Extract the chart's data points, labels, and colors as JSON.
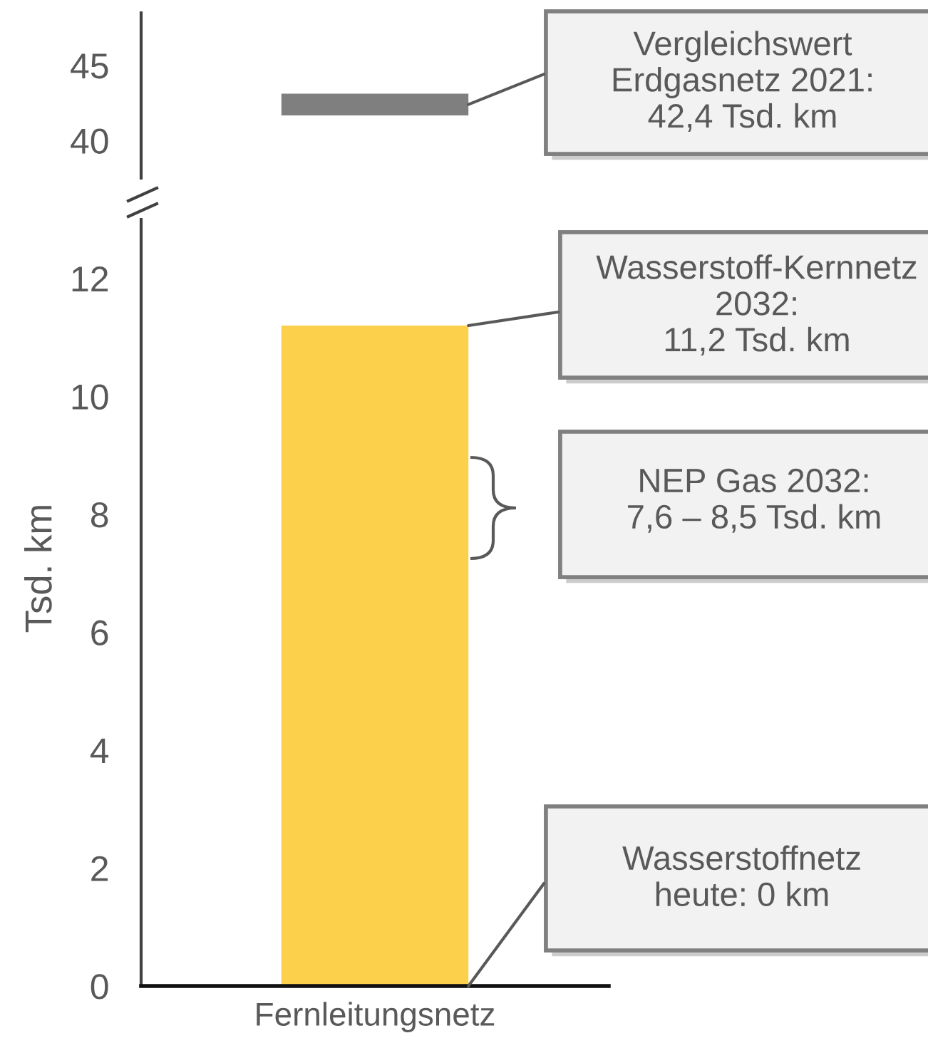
{
  "chart_data": [
    {
      "type": "bar",
      "categories": [
        "Fernleitungsnetz"
      ],
      "values": [
        null
      ],
      "ylim": [
        37.5,
        48.5
      ],
      "yticks": [
        40,
        45
      ],
      "tick_labels": "y",
      "ref_lines": [
        {
          "axis": "y",
          "value": 42.4,
          "label": "Vergleichswert\nErdgasnetz 2021:\n42,4 Tsd. km",
          "color": "#7f7f7f"
        }
      ]
    },
    {
      "type": "bar",
      "categories": [
        "Fernleitungsnetz"
      ],
      "values": [
        11.2
      ],
      "color": "#fdd04b",
      "ylim": [
        0,
        13
      ],
      "yticks": [
        0,
        2,
        4,
        6,
        8,
        10,
        12
      ],
      "ylabel": "Tsd. km",
      "annotations": [
        "Wasserstoff-Kernnetz\n2032:\n11,2 Tsd. km",
        "NEP Gas 2032:\n7,6 – 8,5 Tsd. km",
        "Wasserstoffnetz\nheute: 0 km"
      ]
    }
  ]
}
